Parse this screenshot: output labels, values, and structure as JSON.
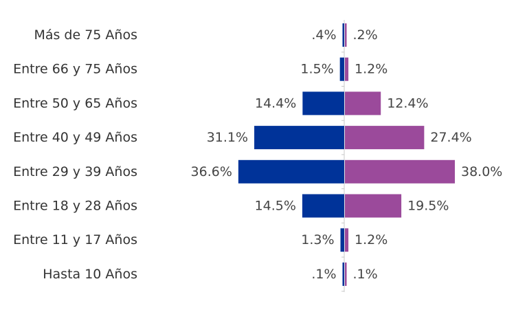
{
  "chart_data": {
    "type": "bar",
    "orientation": "horizontal-diverging",
    "categories": [
      "Más de 75 Años",
      "Entre 66 y 75 Años",
      "Entre 50 y 65 Años",
      "Entre 40 y 49 Años",
      "Entre 29 y 39 Años",
      "Entre 18 y 28 Años",
      "Entre 11 y 17 Años",
      "Hasta 10 Años"
    ],
    "series": [
      {
        "color": "#003399",
        "side": "left",
        "values": [
          0.4,
          1.5,
          14.4,
          31.1,
          36.6,
          14.5,
          1.3,
          0.1
        ],
        "labels": [
          ".4%",
          "1.5%",
          "14.4%",
          "31.1%",
          "36.6%",
          "14.5%",
          "1.3%",
          ".1%"
        ]
      },
      {
        "color": "#9b4a9b",
        "side": "right",
        "values": [
          0.2,
          1.2,
          12.4,
          27.4,
          38.0,
          19.5,
          1.2,
          0.1
        ],
        "labels": [
          ".2%",
          "1.2%",
          "12.4%",
          "27.4%",
          "38.0%",
          "19.5%",
          "1.2%",
          ".1%"
        ]
      }
    ],
    "xlim": [
      -38.0,
      38.0
    ],
    "grid": false,
    "legend": "none",
    "title": "",
    "xlabel": "",
    "ylabel": ""
  }
}
